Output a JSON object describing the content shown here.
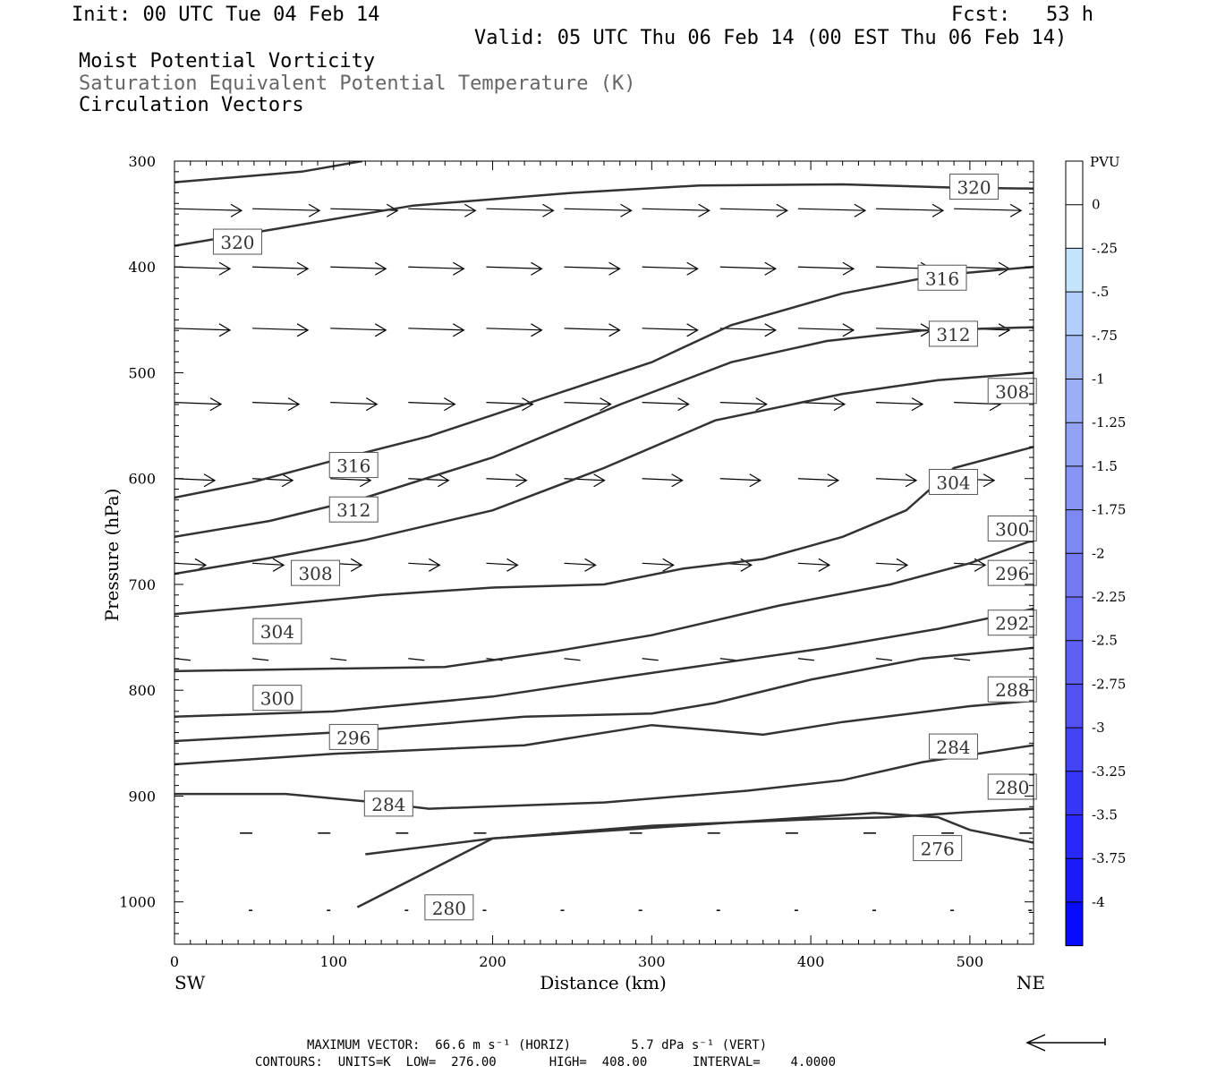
{
  "header": {
    "init": "Init: 00 UTC Tue 04 Feb 14",
    "fcst": "Fcst:   53 h",
    "valid": "Valid: 05 UTC Thu 06 Feb 14 (00 EST Thu 06 Feb 14)",
    "field1": "Moist Potential Vorticity",
    "field2": "Saturation Equivalent Potential Temperature (K)",
    "field3": "Circulation Vectors"
  },
  "footer": {
    "max_vector": "MAXIMUM VECTOR:  66.6 m s⁻¹ (HORIZ)        5.7 dPa s⁻¹ (VERT)",
    "contours": "CONTOURS:  UNITS=K  LOW=  276.00       HIGH=  408.00      INTERVAL=    4.0000"
  },
  "chart_data": {
    "type": "line",
    "xlabel": "Distance (km)",
    "ylabel": "Pressure (hPa)",
    "x_left_label": "SW",
    "x_right_label": "NE",
    "xlim": [
      0,
      540
    ],
    "ylim": [
      1040,
      300
    ],
    "xticks": [
      0,
      100,
      200,
      300,
      400,
      500
    ],
    "yticks": [
      300,
      400,
      500,
      600,
      700,
      800,
      900,
      1000
    ],
    "colorbar": {
      "unit": "PVU",
      "ticks": [
        "0",
        "-.25",
        "-.5",
        "-.75",
        "-1",
        "-1.25",
        "-1.5",
        "-1.75",
        "-2",
        "-2.25",
        "-2.5",
        "-2.75",
        "-3",
        "-3.25",
        "-3.5",
        "-3.75",
        "-4"
      ],
      "colors": [
        "#ffffff",
        "#ffffff",
        "#c4e4fb",
        "#b2cffb",
        "#a6bdf8",
        "#9caff6",
        "#92a2f5",
        "#8895f4",
        "#7e88f3",
        "#747bf2",
        "#6a6ef2",
        "#5f60f2",
        "#5252f3",
        "#4444f4",
        "#3636f6",
        "#2828f8",
        "#1a1afa",
        "#0a0afc"
      ]
    },
    "contours": [
      {
        "label": "320",
        "points": [
          [
            0,
            320
          ],
          [
            40,
            315
          ],
          [
            80,
            310
          ],
          [
            118,
            300
          ]
        ]
      },
      {
        "label": "320",
        "points": [
          [
            0,
            380
          ],
          [
            60,
            365
          ],
          [
            150,
            342
          ],
          [
            250,
            330
          ],
          [
            330,
            323
          ],
          [
            420,
            322
          ],
          [
            490,
            325
          ],
          [
            540,
            326
          ]
        ]
      },
      {
        "label": "316",
        "points": [
          [
            0,
            618
          ],
          [
            50,
            603
          ],
          [
            100,
            583
          ],
          [
            160,
            560
          ],
          [
            230,
            525
          ],
          [
            300,
            490
          ],
          [
            350,
            455
          ],
          [
            420,
            425
          ],
          [
            480,
            408
          ],
          [
            540,
            400
          ]
        ]
      },
      {
        "label": "312",
        "points": [
          [
            0,
            655
          ],
          [
            60,
            640
          ],
          [
            120,
            618
          ],
          [
            200,
            580
          ],
          [
            280,
            530
          ],
          [
            350,
            490
          ],
          [
            410,
            470
          ],
          [
            470,
            460
          ],
          [
            540,
            457
          ]
        ]
      },
      {
        "label": "308",
        "points": [
          [
            0,
            690
          ],
          [
            60,
            675
          ],
          [
            120,
            658
          ],
          [
            200,
            630
          ],
          [
            270,
            590
          ],
          [
            340,
            545
          ],
          [
            420,
            520
          ],
          [
            480,
            507
          ],
          [
            540,
            500
          ]
        ]
      },
      {
        "label": "304",
        "points": [
          [
            0,
            728
          ],
          [
            60,
            720
          ],
          [
            130,
            710
          ],
          [
            200,
            703
          ],
          [
            270,
            700
          ],
          [
            320,
            685
          ],
          [
            370,
            676
          ],
          [
            420,
            655
          ],
          [
            460,
            630
          ],
          [
            490,
            590
          ],
          [
            540,
            570
          ]
        ]
      },
      {
        "label": "300",
        "points": [
          [
            0,
            782
          ],
          [
            80,
            780
          ],
          [
            170,
            778
          ],
          [
            240,
            763
          ],
          [
            300,
            748
          ],
          [
            380,
            720
          ],
          [
            450,
            700
          ],
          [
            500,
            680
          ],
          [
            540,
            658
          ]
        ]
      },
      {
        "label": "296",
        "points": [
          [
            0,
            825
          ],
          [
            100,
            820
          ],
          [
            200,
            806
          ],
          [
            280,
            788
          ],
          [
            340,
            775
          ],
          [
            410,
            760
          ],
          [
            480,
            742
          ],
          [
            540,
            723
          ]
        ]
      },
      {
        "label": "292",
        "points": [
          [
            0,
            848
          ],
          [
            100,
            840
          ],
          [
            220,
            825
          ],
          [
            300,
            822
          ],
          [
            340,
            812
          ],
          [
            400,
            790
          ],
          [
            470,
            770
          ],
          [
            540,
            760
          ]
        ]
      },
      {
        "label": "288",
        "points": [
          [
            0,
            870
          ],
          [
            100,
            860
          ],
          [
            220,
            852
          ],
          [
            300,
            833
          ],
          [
            340,
            838
          ],
          [
            370,
            842
          ],
          [
            420,
            830
          ],
          [
            500,
            815
          ],
          [
            540,
            810
          ]
        ]
      },
      {
        "label": "284",
        "points": [
          [
            0,
            898
          ],
          [
            70,
            898
          ],
          [
            120,
            905
          ],
          [
            160,
            912
          ],
          [
            270,
            906
          ],
          [
            360,
            895
          ],
          [
            420,
            885
          ],
          [
            470,
            868
          ],
          [
            540,
            852
          ]
        ]
      },
      {
        "label": "280",
        "points": [
          [
            115,
            1005
          ],
          [
            200,
            940
          ],
          [
            300,
            928
          ],
          [
            400,
            922
          ],
          [
            450,
            920
          ],
          [
            500,
            915
          ],
          [
            540,
            912
          ]
        ]
      },
      {
        "label": "276",
        "points": [
          [
            120,
            955
          ],
          [
            200,
            940
          ],
          [
            320,
            928
          ],
          [
            400,
            920
          ],
          [
            440,
            916
          ],
          [
            480,
            920
          ],
          [
            500,
            932
          ],
          [
            540,
            944
          ]
        ]
      }
    ]
  }
}
